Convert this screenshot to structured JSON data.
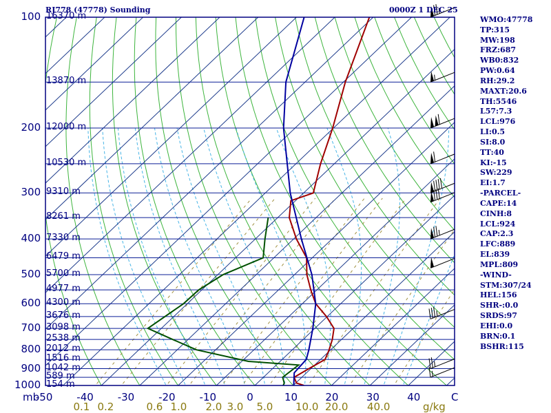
{
  "header": {
    "station": "RJ778 (47778) Sounding",
    "time": "0000Z  1 DEC 25"
  },
  "stats": [
    "WMO:47778",
    "TP:315",
    "MW:198",
    "FRZ:687",
    "WB0:832",
    "PW:0.64",
    "RH:29.2",
    "MAXT:20.6",
    "TH:5546",
    "L57:7.3",
    "LCL:976",
    "LI:0.5",
    "SI:8.0",
    "TT:40",
    "KI:-15",
    "SW:229",
    "EI:1.7",
    "-PARCEL-",
    "CAPE:14",
    "CINH:8",
    "LCL:924",
    "CAP:2.3",
    "LFC:889",
    "EL:839",
    "MPL:809",
    "-WIND-",
    "STM:307/24",
    "HEL:156",
    "SHR-:0.0",
    "SRDS:97",
    "EHI:0.0",
    "BRN:0.1",
    "BSHR:115"
  ],
  "chart_data": {
    "type": "line",
    "title": "RJ778 (47778) Sounding",
    "x_unit_label": "mb",
    "mixing_unit_label": "g/kg",
    "xlim": [
      -50,
      50
    ],
    "ylim": [
      1000,
      100
    ],
    "y_scale": "log",
    "pressure_ticks": [
      100,
      200,
      300,
      400,
      500,
      600,
      700,
      800,
      900,
      1000
    ],
    "temperature_ticks": [
      -50,
      -40,
      -30,
      -20,
      -10,
      0,
      10,
      20,
      30,
      40,
      "C"
    ],
    "mixing_ratio_labels": [
      "0.1",
      "0.2",
      "0.6",
      "1.0",
      "2.0",
      "3.0",
      "5.0",
      "10.0",
      "20.0",
      "40.0"
    ],
    "mixing_ratio_values": [
      0.1,
      0.2,
      0.6,
      1.0,
      2.0,
      3.0,
      5.0,
      10.0,
      20.0,
      40.0
    ],
    "height_labels": [
      {
        "p": 100,
        "label": "16370 m"
      },
      {
        "p": 150,
        "label": "13870 m"
      },
      {
        "p": 200,
        "label": "12000 m"
      },
      {
        "p": 250,
        "label": "10530 m"
      },
      {
        "p": 300,
        "label": "9310 m"
      },
      {
        "p": 350,
        "label": "8261 m"
      },
      {
        "p": 400,
        "label": "7330 m"
      },
      {
        "p": 450,
        "label": "6479 m"
      },
      {
        "p": 500,
        "label": "5700 m"
      },
      {
        "p": 550,
        "label": "4977 m"
      },
      {
        "p": 600,
        "label": "4300 m"
      },
      {
        "p": 650,
        "label": "3676 m"
      },
      {
        "p": 700,
        "label": "3098 m"
      },
      {
        "p": 750,
        "label": "2538 m"
      },
      {
        "p": 800,
        "label": "2012 m"
      },
      {
        "p": 850,
        "label": "1516 m"
      },
      {
        "p": 900,
        "label": "1042 m"
      },
      {
        "p": 950,
        "label": "589 m"
      },
      {
        "p": 1000,
        "label": "154 m"
      }
    ],
    "series": [
      {
        "name": "Temperature",
        "color": "#a00000",
        "points": [
          [
            1016,
            9.5
          ],
          [
            1000,
            12.8
          ],
          [
            985,
            10.2
          ],
          [
            950,
            8.0
          ],
          [
            900,
            9.5
          ],
          [
            850,
            11.2
          ],
          [
            800,
            9.6
          ],
          [
            750,
            7.6
          ],
          [
            700,
            5.0
          ],
          [
            650,
            -0.2
          ],
          [
            600,
            -6.5
          ],
          [
            550,
            -11.6
          ],
          [
            500,
            -16.8
          ],
          [
            450,
            -21.5
          ],
          [
            400,
            -29.3
          ],
          [
            350,
            -37.0
          ],
          [
            315,
            -41.2
          ],
          [
            300,
            -37.5
          ],
          [
            250,
            -43.6
          ],
          [
            200,
            -50.2
          ],
          [
            150,
            -59.5
          ],
          [
            100,
            -71.0
          ],
          [
            95,
            -71.0
          ]
        ]
      },
      {
        "name": "Dewpoint",
        "color": "#005000",
        "points": [
          [
            1016,
            7.8
          ],
          [
            985,
            7.0
          ],
          [
            950,
            5.0
          ],
          [
            880,
            5.8
          ],
          [
            860,
            -8.3
          ],
          [
            800,
            -25.0
          ],
          [
            750,
            -34.0
          ],
          [
            700,
            -43.5
          ],
          [
            600,
            -41.0
          ],
          [
            550,
            -40.8
          ],
          [
            500,
            -38.6
          ],
          [
            450,
            -32.8
          ],
          [
            400,
            -37.5
          ],
          [
            350,
            -42.5
          ]
        ]
      },
      {
        "name": "Parcel",
        "color": "#0000a0",
        "points": [
          [
            1016,
            10.8
          ],
          [
            924,
            6.8
          ],
          [
            850,
            6.3
          ],
          [
            800,
            4.3
          ],
          [
            700,
            -0.5
          ],
          [
            600,
            -6.5
          ],
          [
            500,
            -15.5
          ],
          [
            400,
            -28.0
          ],
          [
            300,
            -43.5
          ],
          [
            200,
            -63.0
          ],
          [
            150,
            -75.0
          ],
          [
            100,
            -88.0
          ]
        ]
      }
    ],
    "winds": [
      {
        "p": 100,
        "spd": 75
      },
      {
        "p": 150,
        "spd": 55
      },
      {
        "p": 200,
        "spd": 110
      },
      {
        "p": 250,
        "spd": 60
      },
      {
        "p": 300,
        "spd": 90
      },
      {
        "p": 318,
        "spd": 80
      },
      {
        "p": 400,
        "spd": 75
      },
      {
        "p": 480,
        "spd": 50
      },
      {
        "p": 660,
        "spd": 35
      },
      {
        "p": 900,
        "spd": 25
      },
      {
        "p": 950,
        "spd": 15
      }
    ]
  }
}
